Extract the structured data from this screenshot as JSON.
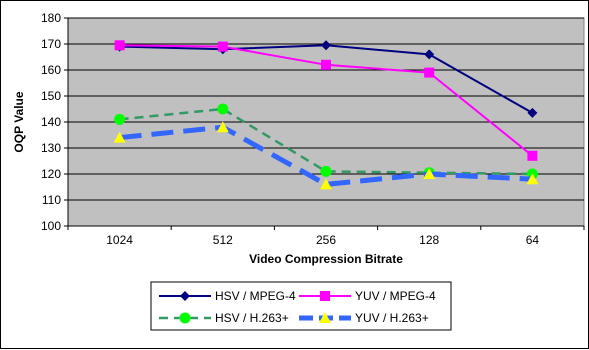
{
  "chart_data": {
    "type": "line",
    "categories": [
      "1024",
      "512",
      "256",
      "128",
      "64"
    ],
    "xlabel": "Video Compression Bitrate",
    "ylabel": "OQP Value",
    "ylim": [
      100,
      180
    ],
    "yticks": [
      100,
      110,
      120,
      130,
      140,
      150,
      160,
      170,
      180
    ],
    "grid": true,
    "legend_position": "bottom",
    "series": [
      {
        "name": "HSV / MPEG-4",
        "values": [
          169,
          168,
          169.5,
          166,
          143.5
        ],
        "color": "#000080",
        "marker": "diamond",
        "line": "solid",
        "marker_color": "#000080"
      },
      {
        "name": "YUV / MPEG-4",
        "values": [
          169.5,
          169,
          162,
          159,
          127
        ],
        "color": "#ff00ff",
        "marker": "square",
        "line": "solid",
        "marker_color": "#ff00ff"
      },
      {
        "name": "HSV / H.263+",
        "values": [
          141,
          145,
          121,
          120.5,
          120
        ],
        "color": "#339966",
        "marker": "circle",
        "line": "dashed",
        "marker_color": "#00ff00"
      },
      {
        "name": "YUV / H.263+",
        "values": [
          134,
          138,
          116,
          120,
          118
        ],
        "color": "#3366ff",
        "marker": "triangle",
        "line": "dashed-thick",
        "marker_color": "#ffff00"
      }
    ],
    "colors": {
      "plot_background": "#c0c0c0",
      "gridline": "#000000"
    }
  }
}
